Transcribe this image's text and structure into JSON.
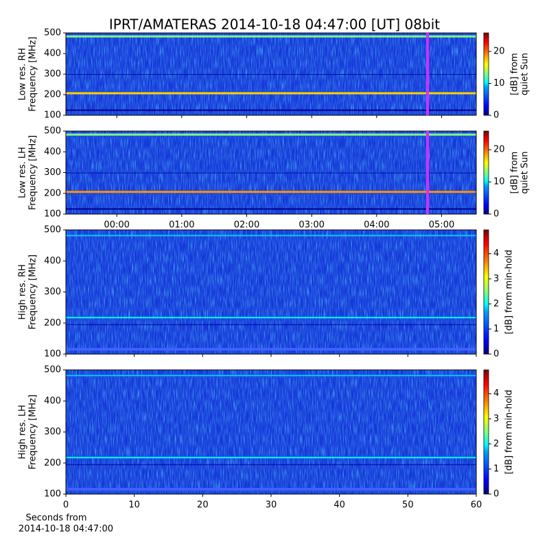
{
  "title": "IPRT/AMATERAS 2014-10-18 04:47:00 [UT]   08bit",
  "chart_data": [
    {
      "type": "heatmap",
      "ylabel": [
        "Low res. RH",
        "Frequency [MHz]"
      ],
      "ylim": [
        100,
        500
      ],
      "yticks": [
        100,
        200,
        300,
        400,
        500
      ],
      "xlim": [
        -47,
        332
      ],
      "xticks": [
        0,
        60,
        120,
        180,
        240,
        300
      ],
      "show_xtick_labels": false,
      "cursor_x": 287,
      "cursor_color": "#d030ff",
      "colorbar_label": [
        "[dB] from",
        "quiet Sun"
      ],
      "clim": [
        0,
        25.8
      ],
      "cticks": [
        0,
        10,
        20
      ]
    },
    {
      "type": "heatmap",
      "ylabel": [
        "Low res. LH",
        "Frequency [MHz]"
      ],
      "ylim": [
        100,
        500
      ],
      "yticks": [
        100,
        200,
        300,
        400,
        500
      ],
      "xlim": [
        -47,
        332
      ],
      "xticks": [
        {
          "value": 0,
          "label": "00:00"
        },
        {
          "value": 60,
          "label": "01:00"
        },
        {
          "value": 120,
          "label": "02:00"
        },
        {
          "value": 180,
          "label": "03:00"
        },
        {
          "value": 240,
          "label": "04:00"
        },
        {
          "value": 300,
          "label": "05:00"
        }
      ],
      "show_xtick_labels": true,
      "cursor_x": 287,
      "cursor_color": "#d030ff",
      "colorbar_label": [
        "[dB] from",
        "quiet Sun"
      ],
      "clim": [
        0,
        25.8
      ],
      "cticks": [
        0,
        10,
        20
      ]
    },
    {
      "type": "heatmap",
      "ylabel": [
        "High res. RH",
        "Frequency [MHz]"
      ],
      "ylim": [
        100,
        500
      ],
      "yticks": [
        100,
        200,
        300,
        400,
        500
      ],
      "xlim": [
        0,
        60
      ],
      "xticks": [
        0,
        10,
        20,
        30,
        40,
        50,
        60
      ],
      "show_xtick_labels": false,
      "colorbar_label": [
        "[dB] from min-hold"
      ],
      "clim": [
        0,
        4.95
      ],
      "cticks": [
        0,
        1,
        2,
        3,
        4
      ]
    },
    {
      "type": "heatmap",
      "ylabel": [
        "High res. LH",
        "Frequency [MHz]"
      ],
      "ylim": [
        100,
        500
      ],
      "yticks": [
        100,
        200,
        300,
        400,
        500
      ],
      "xlim": [
        0,
        60
      ],
      "xticks": [
        0,
        10,
        20,
        30,
        40,
        50,
        60
      ],
      "show_xtick_labels": true,
      "xlabel": [
        "Seconds from",
        "2014-10-18 04:47:00"
      ],
      "colorbar_label": [
        "[dB] from min-hold"
      ],
      "clim": [
        0,
        4.95
      ],
      "cticks": [
        0,
        1,
        2,
        3,
        4
      ]
    }
  ]
}
